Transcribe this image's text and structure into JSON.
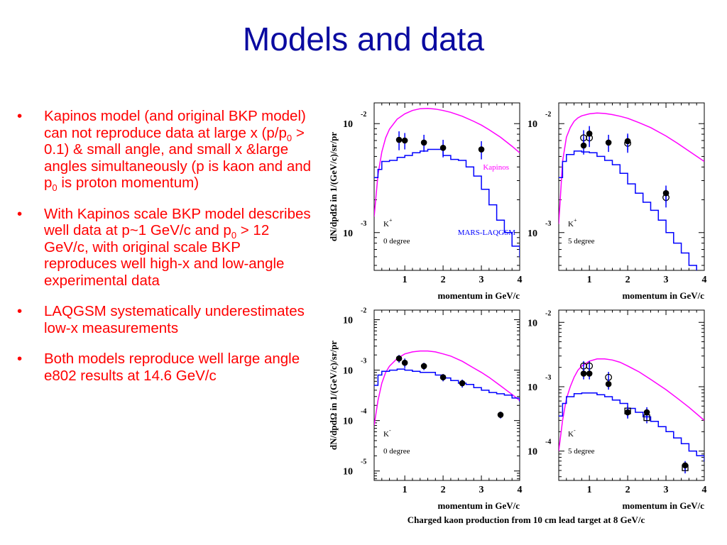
{
  "slide": {
    "title": "Models and data",
    "bullets": [
      {
        "segments": [
          {
            "t": "Kapinos model (and original BKP model) can not reproduce data at large x (p/p"
          },
          {
            "t": "0",
            "sub": true
          },
          {
            "t": " > 0.1) & small angle, and small x &large angles simultaneously (p is kaon and and p"
          },
          {
            "t": "0",
            "sub": true
          },
          {
            "t": "  is proton momentum)"
          }
        ]
      },
      {
        "segments": [
          {
            "t": "With Kapinos scale BKP model describes well data at p~1 GeV/c and p"
          },
          {
            "t": "0",
            "sub": true
          },
          {
            "t": " > 12 GeV/c, with original scale BKP reproduces well high-x and low-angle experimental data"
          }
        ]
      },
      {
        "segments": [
          {
            "t": "LAQGSM systematically underestimates low-x measurements"
          }
        ]
      },
      {
        "segments": [
          {
            "t": "Both models reproduce well large angle e802 results at 14.6 GeV/c"
          }
        ]
      }
    ]
  },
  "figure": {
    "caption": "Charged kaon production from 10 cm lead target at 8 GeV/c",
    "colors": {
      "kapinos": "#ff00ff",
      "mars": "#0000ff",
      "data": "#000000"
    }
  },
  "chart_data": [
    {
      "type": "line",
      "particle": "K",
      "charge": "+",
      "angle_label": "0 degree",
      "xlabel": "momentum in GeV/c",
      "ylabel": "dN/dpdΩ in 1/(GeV/c)/sr/pr",
      "xlim": [
        0.2,
        4
      ],
      "ylim": [
        0.00045,
        0.0155
      ],
      "yscale": "log",
      "xticks": [
        1,
        2,
        3,
        4
      ],
      "yticks": [
        0.01,
        0.001
      ],
      "ytick_labels": [
        {
          "base": "10",
          "exp": "-2"
        },
        {
          "base": "10",
          "exp": "-3"
        }
      ],
      "series_labels": {
        "kapinos": "Kapinos",
        "mars": "MARS-LAQGSM"
      },
      "kapinos": {
        "x": [
          0.2,
          0.3,
          0.4,
          0.5,
          0.6,
          0.8,
          1.0,
          1.2,
          1.4,
          1.6,
          1.8,
          2.0,
          2.2,
          2.5,
          2.8,
          3.0,
          3.2,
          3.5,
          3.8,
          4.0
        ],
        "y": [
          0.0014,
          0.0034,
          0.0055,
          0.0074,
          0.0089,
          0.011,
          0.0123,
          0.0132,
          0.0137,
          0.0138,
          0.0136,
          0.0132,
          0.0127,
          0.0117,
          0.0105,
          0.0097,
          0.0088,
          0.0075,
          0.0062,
          0.0054
        ]
      },
      "mars": {
        "x": [
          0.2,
          0.3,
          0.4,
          0.6,
          0.8,
          1.0,
          1.2,
          1.4,
          1.6,
          1.8,
          2.0,
          2.2,
          2.4,
          2.6,
          2.8,
          3.0,
          3.2,
          3.4,
          3.6,
          3.8,
          4.0
        ],
        "y": [
          0.0032,
          0.0038,
          0.0045,
          0.0046,
          0.0049,
          0.0051,
          0.0054,
          0.0056,
          0.0058,
          0.0058,
          0.0051,
          0.0047,
          0.0046,
          0.004,
          0.0033,
          0.0025,
          0.0018,
          0.0013,
          0.001,
          0.00075,
          0.0006
        ]
      },
      "data": [
        {
          "x": 0.85,
          "y": 0.0071,
          "err": 0.0014,
          "style": "filled"
        },
        {
          "x": 1.0,
          "y": 0.007,
          "err": 0.0012,
          "style": "filled"
        },
        {
          "x": 1.5,
          "y": 0.0067,
          "err": 0.0012,
          "style": "filled"
        },
        {
          "x": 2.0,
          "y": 0.006,
          "err": 0.0011,
          "style": "filled"
        },
        {
          "x": 3.0,
          "y": 0.0058,
          "err": 0.0011,
          "style": "filled"
        }
      ]
    },
    {
      "type": "line",
      "particle": "K",
      "charge": "+",
      "angle_label": "5 degree",
      "xlabel": "momentum in GeV/c",
      "xlim": [
        0.2,
        4
      ],
      "ylim": [
        0.00045,
        0.0155
      ],
      "yscale": "log",
      "xticks": [
        1,
        2,
        3,
        4
      ],
      "yticks": [
        0.01,
        0.001
      ],
      "ytick_labels": [
        {
          "base": "10",
          "exp": "-2"
        },
        {
          "base": "10",
          "exp": "-3"
        }
      ],
      "kapinos": {
        "x": [
          0.2,
          0.3,
          0.4,
          0.5,
          0.6,
          0.7,
          0.8,
          1.0,
          1.2,
          1.4,
          1.6,
          1.8,
          2.0,
          2.3,
          2.6,
          3.0,
          3.3,
          3.6,
          4.0
        ],
        "y": [
          0.0012,
          0.0045,
          0.0075,
          0.0092,
          0.0105,
          0.0113,
          0.0118,
          0.0123,
          0.0125,
          0.0124,
          0.0121,
          0.0117,
          0.0112,
          0.0102,
          0.0092,
          0.0077,
          0.0066,
          0.0056,
          0.0045
        ]
      },
      "mars": {
        "x": [
          0.2,
          0.3,
          0.4,
          0.6,
          0.8,
          1.0,
          1.2,
          1.4,
          1.6,
          1.8,
          2.0,
          2.2,
          2.4,
          2.6,
          2.8,
          3.0,
          3.2,
          3.4,
          3.6,
          3.8
        ],
        "y": [
          0.0032,
          0.0045,
          0.0052,
          0.0056,
          0.0055,
          0.0054,
          0.005,
          0.0046,
          0.0042,
          0.0035,
          0.0028,
          0.0023,
          0.0019,
          0.0016,
          0.0013,
          0.001,
          0.0008,
          0.00065,
          0.0005,
          0.0004
        ]
      },
      "data": [
        {
          "x": 0.85,
          "y": 0.0074,
          "err": 0.0013,
          "style": "open"
        },
        {
          "x": 0.85,
          "y": 0.0063,
          "err": 0.0011,
          "style": "filled"
        },
        {
          "x": 1.0,
          "y": 0.0074,
          "err": 0.0013,
          "style": "open"
        },
        {
          "x": 1.0,
          "y": 0.0081,
          "err": 0.0014,
          "style": "filled"
        },
        {
          "x": 1.5,
          "y": 0.0067,
          "err": 0.0012,
          "style": "filled"
        },
        {
          "x": 2.0,
          "y": 0.0066,
          "err": 0.0012,
          "style": "open"
        },
        {
          "x": 2.0,
          "y": 0.0069,
          "err": 0.0012,
          "style": "filled"
        },
        {
          "x": 3.0,
          "y": 0.0021,
          "err": 0.0004,
          "style": "open"
        },
        {
          "x": 3.0,
          "y": 0.0023,
          "err": 0.0004,
          "style": "filled"
        }
      ]
    },
    {
      "type": "line",
      "particle": "K",
      "charge": "-",
      "angle_label": "0 degree",
      "xlabel": "momentum in GeV/c",
      "ylabel": "dN/dpdΩ in 1/(GeV/c)/sr/pr",
      "xlim": [
        0.2,
        4
      ],
      "ylim": [
        6.5e-06,
        0.0155
      ],
      "yscale": "log",
      "xticks": [
        1,
        2,
        3,
        4
      ],
      "yticks": [
        0.01,
        0.001,
        0.0001,
        1e-05
      ],
      "ytick_labels": [
        {
          "base": "10",
          "exp": "-2"
        },
        {
          "base": "10",
          "exp": "-3"
        },
        {
          "base": "10",
          "exp": "-4"
        },
        {
          "base": "10",
          "exp": "-5"
        }
      ],
      "kapinos": {
        "x": [
          0.2,
          0.3,
          0.4,
          0.5,
          0.6,
          0.8,
          1.0,
          1.2,
          1.4,
          1.6,
          1.8,
          2.0,
          2.2,
          2.5,
          2.8,
          3.0,
          3.2,
          3.5,
          3.8,
          4.0
        ],
        "y": [
          8e-05,
          0.00025,
          0.00055,
          0.0009,
          0.0012,
          0.0017,
          0.0021,
          0.0023,
          0.0024,
          0.0024,
          0.0023,
          0.0021,
          0.0019,
          0.0015,
          0.0011,
          0.0009,
          0.00072,
          0.00049,
          0.00033,
          0.00025
        ]
      },
      "mars": {
        "x": [
          0.2,
          0.3,
          0.4,
          0.6,
          0.8,
          1.0,
          1.2,
          1.4,
          1.6,
          1.8,
          2.0,
          2.2,
          2.4,
          2.6,
          2.8,
          3.0,
          3.2,
          3.4,
          3.6,
          3.8,
          4.0
        ],
        "y": [
          0.0005,
          0.0008,
          0.00095,
          0.001,
          0.00105,
          0.001,
          0.00095,
          0.0009,
          0.0009,
          0.0008,
          0.0007,
          0.00062,
          0.00055,
          0.00052,
          0.00045,
          0.0004,
          0.00036,
          0.00034,
          0.00032,
          0.00028,
          0.00024
        ]
      },
      "data": [
        {
          "x": 0.85,
          "y": 0.0017,
          "err": 0.0003,
          "style": "filled"
        },
        {
          "x": 1.0,
          "y": 0.0014,
          "err": 0.0003,
          "style": "filled"
        },
        {
          "x": 1.5,
          "y": 0.0012,
          "err": 0.0002,
          "style": "filled"
        },
        {
          "x": 2.0,
          "y": 0.00072,
          "err": 0.00012,
          "style": "filled"
        },
        {
          "x": 2.5,
          "y": 0.00055,
          "err": 0.0001,
          "style": "filled"
        },
        {
          "x": 3.5,
          "y": 0.00013,
          "err": 2e-05,
          "style": "filled"
        }
      ]
    },
    {
      "type": "line",
      "particle": "K",
      "charge": "-",
      "angle_label": "5 degree",
      "xlabel": "momentum in GeV/c",
      "xlim": [
        0.2,
        4
      ],
      "ylim": [
        3.5e-05,
        0.0155
      ],
      "yscale": "log",
      "xticks": [
        1,
        2,
        3,
        4
      ],
      "yticks": [
        0.01,
        0.001,
        0.0001
      ],
      "ytick_labels": [
        {
          "base": "10",
          "exp": "-2"
        },
        {
          "base": "10",
          "exp": "-3"
        },
        {
          "base": "10",
          "exp": "-4"
        }
      ],
      "kapinos": {
        "x": [
          0.2,
          0.3,
          0.4,
          0.5,
          0.6,
          0.7,
          0.8,
          1.0,
          1.2,
          1.4,
          1.6,
          1.8,
          2.0,
          2.3,
          2.6,
          3.0,
          3.3,
          3.6,
          4.0
        ],
        "y": [
          0.0001,
          0.0003,
          0.00065,
          0.001,
          0.0014,
          0.0018,
          0.0021,
          0.0025,
          0.0027,
          0.0027,
          0.0026,
          0.0024,
          0.0021,
          0.0017,
          0.0013,
          0.0009,
          0.00066,
          0.00048,
          0.0003
        ]
      },
      "mars": {
        "x": [
          0.2,
          0.3,
          0.4,
          0.6,
          0.8,
          1.0,
          1.2,
          1.4,
          1.6,
          1.8,
          2.0,
          2.2,
          2.4,
          2.6,
          2.8,
          3.0,
          3.2,
          3.4,
          3.6,
          3.8,
          4.0
        ],
        "y": [
          0.00035,
          0.00055,
          0.0007,
          0.00078,
          0.0008,
          0.0008,
          0.00075,
          0.0007,
          0.00062,
          0.00055,
          0.00046,
          0.0004,
          0.00034,
          0.00029,
          0.00024,
          0.0002,
          0.00016,
          0.00013,
          0.0001,
          8.5e-05,
          7e-05
        ]
      },
      "data": [
        {
          "x": 0.85,
          "y": 0.0021,
          "err": 0.0004,
          "style": "open"
        },
        {
          "x": 0.85,
          "y": 0.0016,
          "err": 0.0003,
          "style": "filled"
        },
        {
          "x": 1.0,
          "y": 0.0021,
          "err": 0.0004,
          "style": "open"
        },
        {
          "x": 1.0,
          "y": 0.0016,
          "err": 0.0003,
          "style": "filled"
        },
        {
          "x": 1.5,
          "y": 0.0014,
          "err": 0.0003,
          "style": "open"
        },
        {
          "x": 1.5,
          "y": 0.0011,
          "err": 0.0002,
          "style": "filled"
        },
        {
          "x": 2.0,
          "y": 0.00042,
          "err": 8e-05,
          "style": "square-open"
        },
        {
          "x": 2.0,
          "y": 0.0004,
          "err": 8e-05,
          "style": "filled"
        },
        {
          "x": 2.5,
          "y": 0.00033,
          "err": 6e-05,
          "style": "square-open"
        },
        {
          "x": 2.5,
          "y": 0.0004,
          "err": 8e-05,
          "style": "filled"
        },
        {
          "x": 3.5,
          "y": 5.5e-05,
          "err": 1e-05,
          "style": "square-open"
        },
        {
          "x": 3.5,
          "y": 6e-05,
          "err": 1e-05,
          "style": "filled"
        }
      ]
    }
  ]
}
